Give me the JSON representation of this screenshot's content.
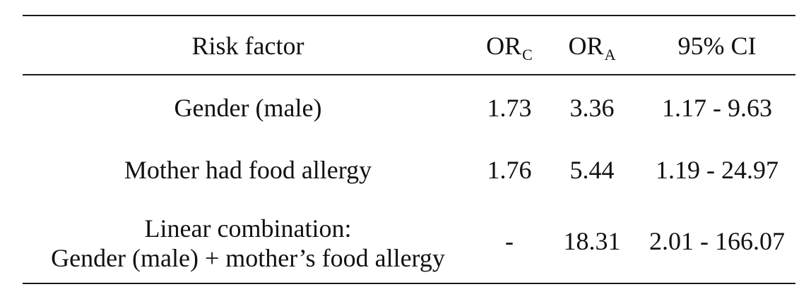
{
  "table": {
    "headers": {
      "risk_factor": "Risk factor",
      "or_c_main": "OR",
      "or_c_sub": "C",
      "or_a_main": "OR",
      "or_a_sub": "A",
      "ci": "95% CI"
    },
    "rows": [
      {
        "risk_factor": "Gender (male)",
        "or_c": "1.73",
        "or_a": "3.36",
        "ci": "1.17 - 9.63"
      },
      {
        "risk_factor": "Mother had food allergy",
        "or_c": "1.76",
        "or_a": "5.44",
        "ci": "1.19 - 24.97"
      },
      {
        "risk_factor_line1": "Linear combination:",
        "risk_factor_line2": "Gender (male) + mother’s food allergy",
        "or_c": "-",
        "or_a": "18.31",
        "ci": "2.01 - 166.07"
      }
    ]
  }
}
